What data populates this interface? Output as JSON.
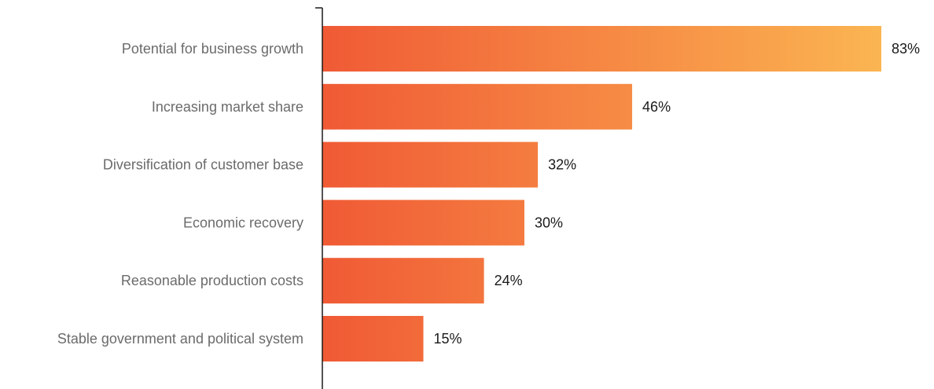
{
  "chart_data": {
    "type": "bar",
    "orientation": "horizontal",
    "categories": [
      "Potential for business growth",
      "Increasing market share",
      "Diversification of customer base",
      "Economic recovery",
      "Reasonable production costs",
      "Stable government and political system"
    ],
    "values": [
      83,
      46,
      32,
      30,
      24,
      15
    ],
    "value_labels": [
      "83%",
      "46%",
      "32%",
      "30%",
      "24%",
      "15%"
    ],
    "value_suffix": "%",
    "title": "",
    "xlabel": "",
    "ylabel": "",
    "xlim": [
      0,
      83
    ],
    "grid": false,
    "legend": "none",
    "colors": {
      "gradient_start": "#f05a35",
      "gradient_end": "#fbb552",
      "axis": "#1a1a1a",
      "category_text": "#6b6b6b",
      "value_text": "#1a1a1a"
    }
  }
}
